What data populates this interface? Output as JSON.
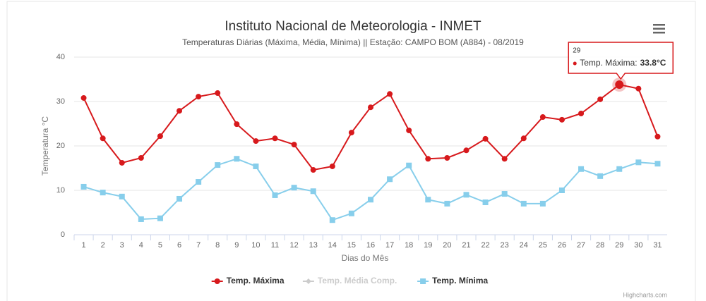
{
  "chart_data": {
    "type": "line",
    "title": "Instituto Nacional de Meteorologia - INMET",
    "subtitle": "Temperaturas Diárias (Máxima, Média, Mínima) || Estação: CAMPO BOM (A884) - 08/2019",
    "x_label": "Dias do Mês",
    "y_label": "Temperatura °C",
    "categories": [
      "1",
      "2",
      "3",
      "4",
      "5",
      "6",
      "7",
      "8",
      "9",
      "10",
      "11",
      "12",
      "13",
      "14",
      "15",
      "16",
      "17",
      "18",
      "19",
      "20",
      "21",
      "22",
      "23",
      "24",
      "25",
      "26",
      "27",
      "28",
      "29",
      "30",
      "31"
    ],
    "ylim": [
      0,
      40
    ],
    "yticks": [
      0,
      10,
      20,
      30,
      40
    ],
    "grid": true,
    "series": [
      {
        "name": "Temp. Máxima",
        "color": "#d7191c",
        "marker": "circle",
        "values": [
          30.8,
          21.7,
          16.2,
          17.3,
          22.2,
          27.9,
          31.1,
          31.9,
          24.9,
          21.1,
          21.7,
          20.3,
          14.6,
          15.4,
          23.0,
          28.7,
          31.7,
          23.5,
          17.1,
          17.3,
          19.0,
          21.6,
          17.1,
          21.7,
          26.5,
          25.9,
          27.3,
          30.5,
          33.8,
          32.9,
          22.1
        ]
      },
      {
        "name": "Temp. Média Comp.",
        "color": "#cccccc",
        "marker": "diamond",
        "hidden": true
      },
      {
        "name": "Temp. Mínima",
        "color": "#87ceeb",
        "marker": "square",
        "values": [
          10.8,
          9.5,
          8.6,
          3.5,
          3.7,
          8.1,
          11.9,
          15.7,
          17.1,
          15.4,
          8.9,
          10.6,
          9.8,
          3.3,
          4.8,
          7.9,
          12.5,
          15.6,
          7.9,
          7.0,
          9.0,
          7.3,
          9.2,
          7.0,
          7.0,
          10.0,
          14.8,
          13.2,
          14.8,
          16.3,
          16.0
        ]
      }
    ],
    "tooltip": {
      "header": "29",
      "label": "Temp. Máxima:",
      "value": "33.8°C"
    },
    "credits": "Highcharts.com"
  }
}
